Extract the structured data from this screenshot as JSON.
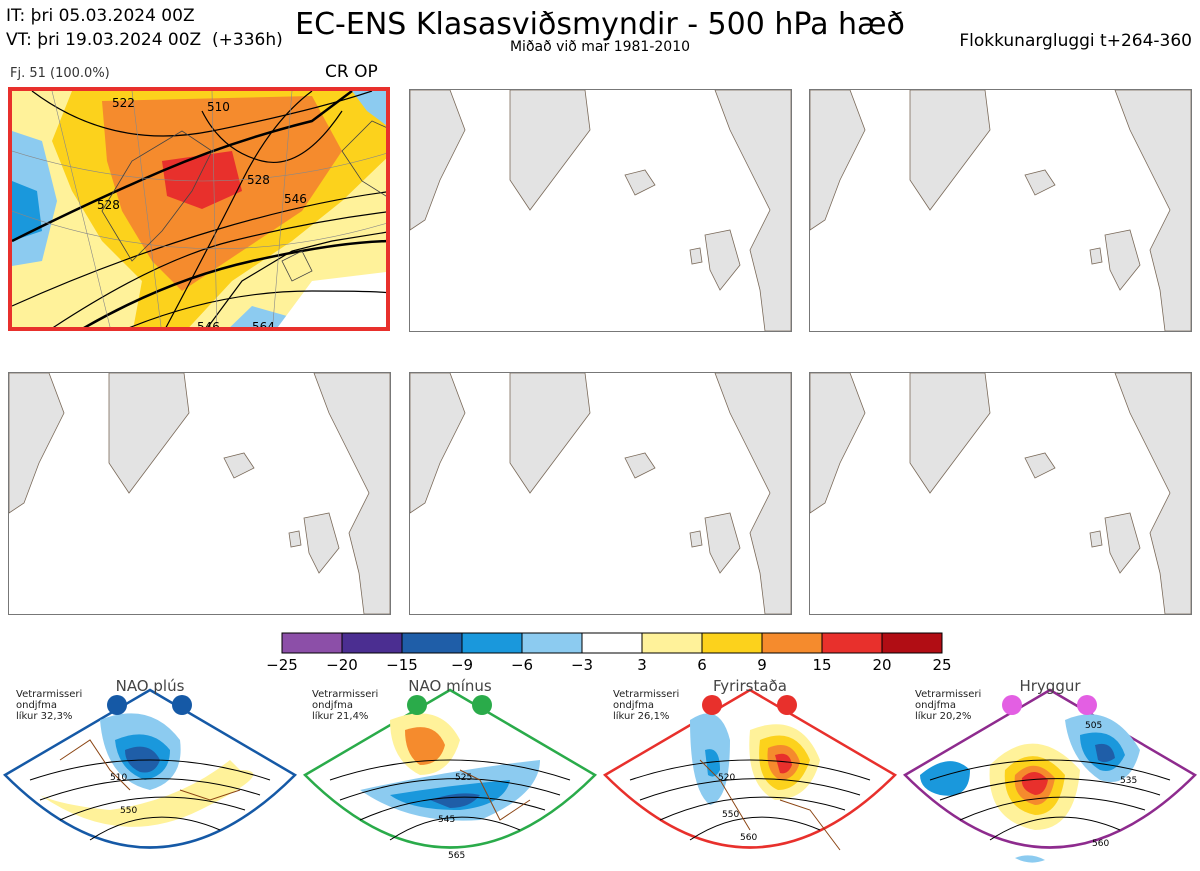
{
  "header": {
    "it_line": "IT: þri 05.03.2024 00Z",
    "vt_line": "VT: þri 19.03.2024 00Z  (+336h)",
    "title": "EC-ENS Klasasviðsmyndir - 500 hPa hæð",
    "subtitle": "Miðað við mar 1981-2010",
    "window": "Flokkunargluggi t+264-360"
  },
  "cluster_panel": {
    "count_label": "Fj. 51 (100.0%)",
    "tag": "CR OP",
    "highlight_color": "#e8302c",
    "contour_labels": [
      "510",
      "528",
      "528",
      "546",
      "546",
      "564",
      "522"
    ]
  },
  "colorbar": {
    "ticks": [
      "−25",
      "−20",
      "−15",
      "−9",
      "−6",
      "−3",
      "3",
      "6",
      "9",
      "15",
      "20",
      "25"
    ],
    "colors": [
      "#8c4fa8",
      "#4b2e91",
      "#1f5ea8",
      "#1a98dc",
      "#8ccbf0",
      "#ffffff",
      "#fff29a",
      "#fcd21c",
      "#f58b2d",
      "#e8302c",
      "#b10d14"
    ]
  },
  "regimes": [
    {
      "name": "NAO plús",
      "info": [
        "Vetrarmisseri",
        "ondjfma",
        "líkur 32,3%"
      ],
      "color": "#1559a6",
      "labels": [
        "510",
        "550"
      ]
    },
    {
      "name": "NAO mínus",
      "info": [
        "Vetrarmisseri",
        "ondjfma",
        "líkur 21,4%"
      ],
      "color": "#2aab4a",
      "labels": [
        "525",
        "545",
        "565"
      ]
    },
    {
      "name": "Fyrirstaða",
      "info": [
        "Vetrarmisseri",
        "ondjfma",
        "líkur 26,1%"
      ],
      "color": "#e8302c",
      "labels": [
        "520",
        "550",
        "560"
      ]
    },
    {
      "name": "Hryggur",
      "info": [
        "Vetrarmisseri",
        "ondjfma",
        "líkur 20,2%"
      ],
      "color": "#e35fe3",
      "labels": [
        "505",
        "535",
        "560"
      ]
    }
  ]
}
